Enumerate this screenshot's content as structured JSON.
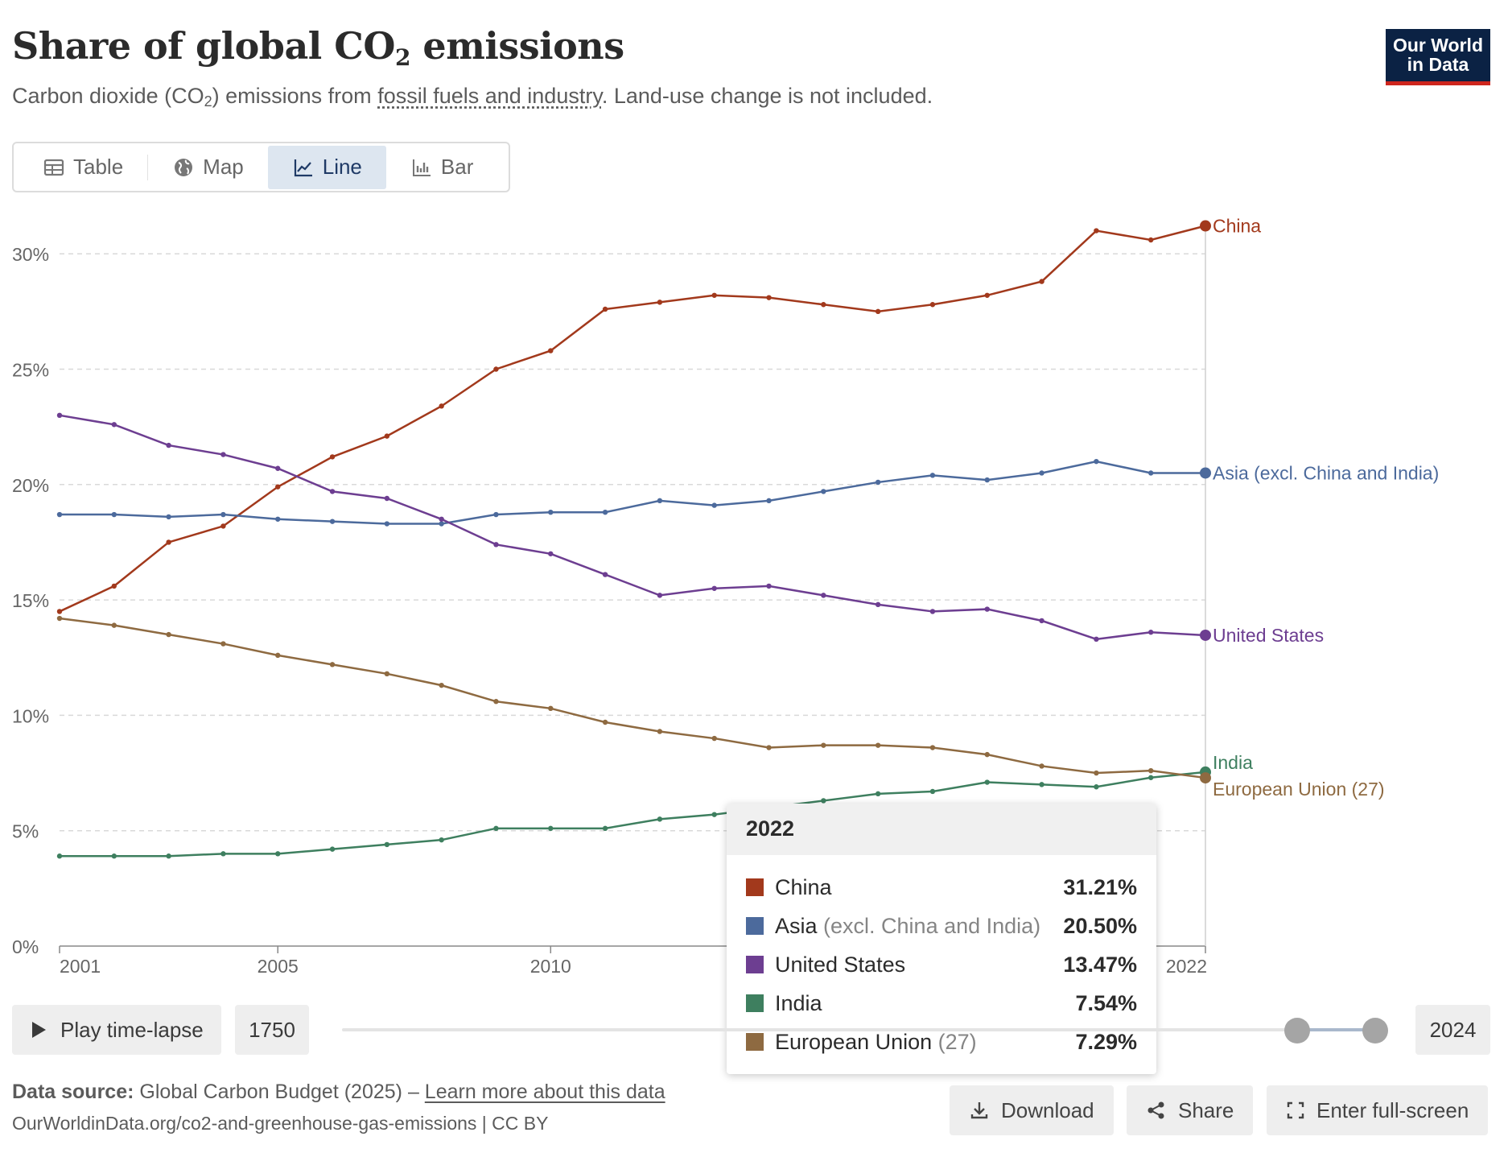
{
  "header": {
    "title_main": "Share of global CO",
    "title_sub": "2",
    "title_end": " emissions",
    "subtitle_a": "Carbon dioxide (CO",
    "subtitle_sub": "2",
    "subtitle_b": ") emissions from ",
    "subtitle_link": "fossil fuels and industry",
    "subtitle_c": ". Land-use change is not included."
  },
  "logo": {
    "line1": "Our World",
    "line2": "in Data"
  },
  "tabs": [
    {
      "label": "Table",
      "icon": "table-icon"
    },
    {
      "label": "Map",
      "icon": "globe-icon"
    },
    {
      "label": "Line",
      "icon": "line-chart-icon",
      "active": true
    },
    {
      "label": "Bar",
      "icon": "bar-chart-icon"
    }
  ],
  "chart_data": {
    "type": "line",
    "title": "Share of global CO₂ emissions",
    "x": [
      2001,
      2002,
      2003,
      2004,
      2005,
      2006,
      2007,
      2008,
      2009,
      2010,
      2011,
      2012,
      2013,
      2014,
      2015,
      2016,
      2017,
      2018,
      2019,
      2020,
      2021,
      2022
    ],
    "xticks": [
      2001,
      2005,
      2010,
      2022
    ],
    "xtick_labels": [
      "2001",
      "2005",
      "2010",
      "2022"
    ],
    "ylim": [
      0,
      32
    ],
    "yticks": [
      0,
      5,
      10,
      15,
      20,
      25,
      30
    ],
    "ytick_labels": [
      "0%",
      "5%",
      "10%",
      "15%",
      "20%",
      "25%",
      "30%"
    ],
    "grid": true,
    "series": [
      {
        "name": "China",
        "color": "#a2391c",
        "values": [
          14.5,
          15.6,
          17.5,
          18.2,
          19.9,
          21.2,
          22.1,
          23.4,
          25.0,
          25.8,
          27.6,
          27.9,
          28.2,
          28.1,
          27.8,
          27.5,
          27.8,
          28.2,
          28.8,
          31.0,
          30.6,
          31.21
        ]
      },
      {
        "name": "Asia (excl. China and India)",
        "color": "#4c6a9c",
        "values": [
          18.7,
          18.7,
          18.6,
          18.7,
          18.5,
          18.4,
          18.3,
          18.3,
          18.7,
          18.8,
          18.8,
          19.3,
          19.1,
          19.3,
          19.7,
          20.1,
          20.4,
          20.2,
          20.5,
          21.0,
          20.5,
          20.5
        ]
      },
      {
        "name": "United States",
        "color": "#6d3e91",
        "values": [
          23.0,
          22.6,
          21.7,
          21.3,
          20.7,
          19.7,
          19.4,
          18.5,
          17.4,
          17.0,
          16.1,
          15.2,
          15.5,
          15.6,
          15.2,
          14.8,
          14.5,
          14.6,
          14.1,
          13.3,
          13.6,
          13.47
        ]
      },
      {
        "name": "India",
        "color": "#3e7f5f",
        "values": [
          3.9,
          3.9,
          3.9,
          4.0,
          4.0,
          4.2,
          4.4,
          4.6,
          5.1,
          5.1,
          5.1,
          5.5,
          5.7,
          6.0,
          6.3,
          6.6,
          6.7,
          7.1,
          7.0,
          6.9,
          7.3,
          7.54
        ]
      },
      {
        "name": "European Union (27)",
        "color": "#8e6a41",
        "values": [
          14.2,
          13.9,
          13.5,
          13.1,
          12.6,
          12.2,
          11.8,
          11.3,
          10.6,
          10.3,
          9.7,
          9.3,
          9.0,
          8.6,
          8.7,
          8.7,
          8.6,
          8.3,
          7.8,
          7.5,
          7.6,
          7.29
        ]
      }
    ]
  },
  "tooltip": {
    "year": "2022",
    "rows": [
      {
        "name": "China",
        "muted": "",
        "value": "31.21%",
        "color": "#a2391c"
      },
      {
        "name": "Asia",
        "muted": " (excl. China and India)",
        "value": "20.50%",
        "color": "#4c6a9c"
      },
      {
        "name": "United States",
        "muted": "",
        "value": "13.47%",
        "color": "#6d3e91"
      },
      {
        "name": "India",
        "muted": "",
        "value": "7.54%",
        "color": "#3e7f5f"
      },
      {
        "name": "European Union",
        "muted": " (27)",
        "value": "7.29%",
        "color": "#8e6a41"
      }
    ]
  },
  "timeline": {
    "play_label": "Play time-lapse",
    "start_year": "1750",
    "end_year": "2024"
  },
  "footer": {
    "source_label": "Data source:",
    "source_text": " Global Carbon Budget (2025) – ",
    "source_link": "Learn more about this data",
    "url": "OurWorldinData.org/co2-and-greenhouse-gas-emissions | CC BY"
  },
  "actions": {
    "download": "Download",
    "share": "Share",
    "fullscreen": "Enter full-screen"
  }
}
